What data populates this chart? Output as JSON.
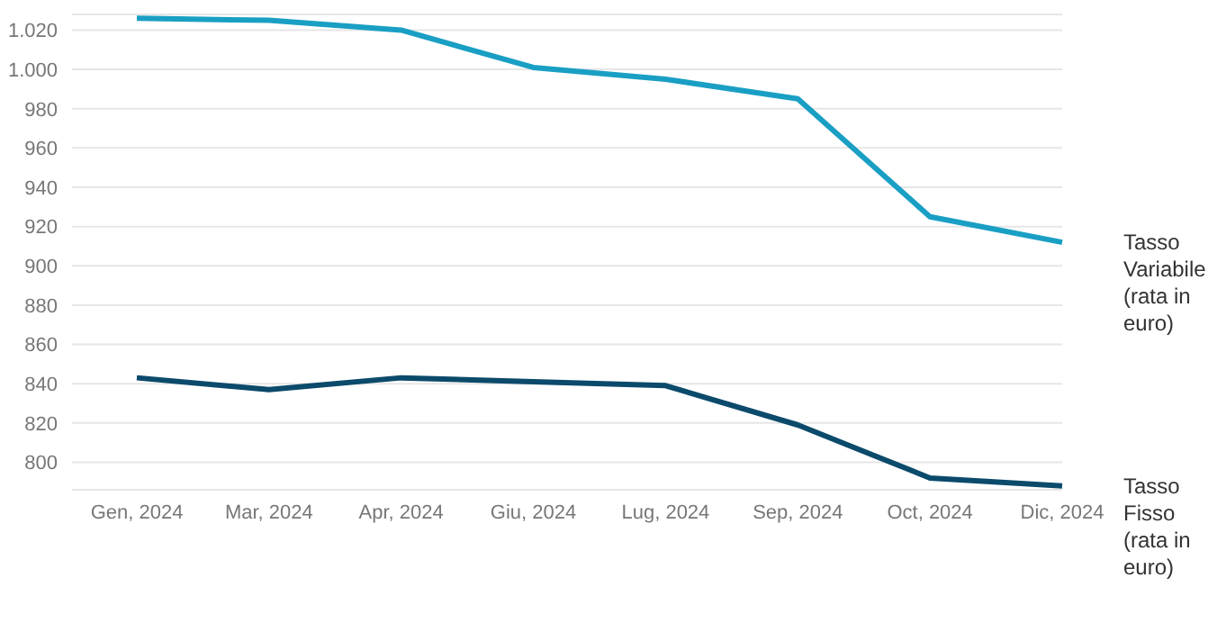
{
  "chart_data": {
    "type": "line",
    "categories": [
      "Gen, 2024",
      "Mar, 2024",
      "Apr, 2024",
      "Giu, 2024",
      "Lug, 2024",
      "Sep, 2024",
      "Oct, 2024",
      "Dic, 2024"
    ],
    "series": [
      {
        "name": "Tasso Variabile (rata in euro)",
        "color": "#1a9fc4",
        "values": [
          1026,
          1025,
          1020,
          1001,
          995,
          985,
          925,
          912
        ]
      },
      {
        "name": "Tasso Fisso (rata in euro)",
        "color": "#0b4a6b",
        "values": [
          843,
          837,
          843,
          841,
          839,
          819,
          792,
          788
        ]
      }
    ],
    "ylim": [
      786,
      1028
    ],
    "yticks": [
      800,
      820,
      840,
      860,
      880,
      900,
      920,
      940,
      960,
      980,
      {
        "value": 1000,
        "label": "1.000"
      },
      {
        "value": 1020,
        "label": "1.020"
      }
    ],
    "grid": "y",
    "legend": false,
    "marker": "none",
    "line_style": "solid"
  }
}
